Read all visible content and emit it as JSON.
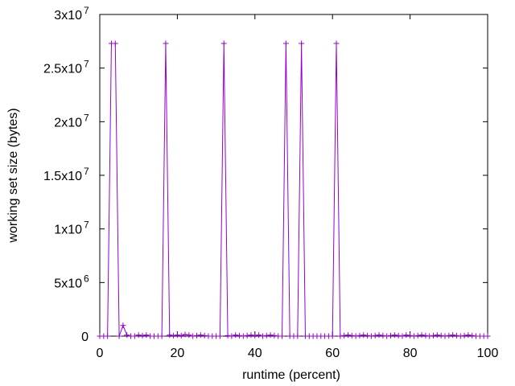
{
  "chart_data": {
    "type": "line",
    "title": "",
    "xlabel": "runtime (percent)",
    "ylabel": "working set size (bytes)",
    "xlim": [
      0,
      100
    ],
    "ylim": [
      0,
      30000000
    ],
    "x_ticks": [
      0,
      20,
      40,
      60,
      80,
      100
    ],
    "x_tick_labels": [
      "0",
      "20",
      "40",
      "60",
      "80",
      "100"
    ],
    "y_ticks": [
      {
        "value": 0,
        "mant": "0",
        "exp": ""
      },
      {
        "value": 5000000,
        "mant": "5x10",
        "exp": "6"
      },
      {
        "value": 10000000,
        "mant": "1x10",
        "exp": "7"
      },
      {
        "value": 15000000,
        "mant": "1.5x10",
        "exp": "7"
      },
      {
        "value": 20000000,
        "mant": "2x10",
        "exp": "7"
      },
      {
        "value": 25000000,
        "mant": "2.5x10",
        "exp": "7"
      },
      {
        "value": 30000000,
        "mant": "3x10",
        "exp": "7"
      }
    ],
    "grid": false,
    "legend": "none",
    "marker": "plus",
    "series": [
      {
        "color": "#9400d3",
        "x": [
          0,
          1,
          2,
          3,
          4,
          5,
          6,
          7,
          8,
          9,
          10,
          11,
          12,
          13,
          14,
          15,
          16,
          17,
          18,
          19,
          20,
          21,
          22,
          23,
          24,
          25,
          26,
          27,
          28,
          29,
          30,
          31,
          32,
          33,
          34,
          35,
          36,
          37,
          38,
          39,
          40,
          41,
          42,
          43,
          44,
          45,
          46,
          47,
          48,
          49,
          50,
          51,
          52,
          53,
          54,
          55,
          56,
          57,
          58,
          59,
          60,
          61,
          62,
          63,
          64,
          65,
          66,
          67,
          68,
          69,
          70,
          71,
          72,
          73,
          74,
          75,
          76,
          77,
          78,
          79,
          80,
          81,
          82,
          83,
          84,
          85,
          86,
          87,
          88,
          89,
          90,
          91,
          92,
          93,
          94,
          95,
          96,
          97,
          98,
          99,
          100
        ],
        "y": [
          0,
          0,
          0,
          27300000,
          27300000,
          0,
          1000000,
          100000,
          0,
          0,
          100000,
          50000,
          100000,
          0,
          0,
          0,
          0,
          27300000,
          100000,
          50000,
          100000,
          50000,
          150000,
          100000,
          0,
          50000,
          100000,
          50000,
          0,
          0,
          0,
          0,
          27300000,
          50000,
          0,
          100000,
          50000,
          0,
          50000,
          100000,
          50000,
          100000,
          0,
          50000,
          100000,
          50000,
          0,
          0,
          27300000,
          0,
          0,
          0,
          27300000,
          0,
          0,
          0,
          0,
          0,
          0,
          0,
          0,
          27300000,
          0,
          50000,
          100000,
          50000,
          0,
          50000,
          100000,
          50000,
          0,
          50000,
          100000,
          50000,
          0,
          50000,
          100000,
          50000,
          0,
          100000,
          50000,
          0,
          50000,
          100000,
          50000,
          0,
          50000,
          100000,
          50000,
          0,
          50000,
          100000,
          50000,
          0,
          50000,
          100000,
          50000,
          0,
          0,
          0,
          0
        ]
      }
    ]
  }
}
